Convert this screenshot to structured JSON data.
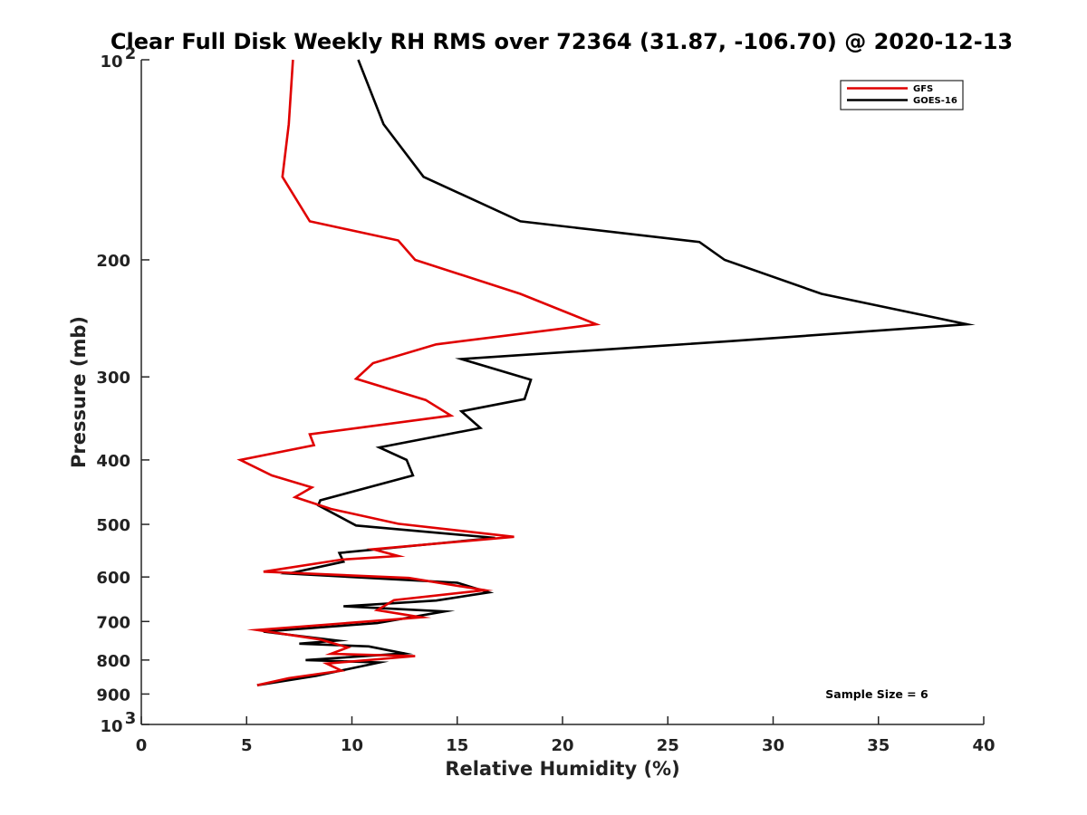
{
  "chart_data": {
    "type": "line",
    "title": "Clear Full Disk Weekly RH RMS over 72364 (31.87, -106.70) @ 2020-12-13",
    "xlabel": "Relative Humidity (%)",
    "ylabel": "Pressure (mb)",
    "xlim": [
      0,
      40
    ],
    "ylim": [
      100,
      1000
    ],
    "y_scale": "log",
    "y_reversed": true,
    "grid": false,
    "legend_position": "top-right",
    "x_ticks": [
      "0",
      "5",
      "10",
      "15",
      "20",
      "25",
      "30",
      "35",
      "40"
    ],
    "y_ticks": [
      {
        "value": 100,
        "base": "10",
        "exp": "2"
      },
      {
        "value": 200,
        "label": "200"
      },
      {
        "value": 300,
        "label": "300"
      },
      {
        "value": 400,
        "label": "400"
      },
      {
        "value": 500,
        "label": "500"
      },
      {
        "value": 600,
        "label": "600"
      },
      {
        "value": 700,
        "label": "700"
      },
      {
        "value": 800,
        "label": "800"
      },
      {
        "value": 900,
        "label": "900"
      },
      {
        "value": 1000,
        "base": "10",
        "exp": "3"
      }
    ],
    "annotation": "Sample Size = 6",
    "series": [
      {
        "name": "GFS",
        "color": "#e00000",
        "points": [
          [
            7.2,
            100
          ],
          [
            7.0,
            125
          ],
          [
            6.7,
            150
          ],
          [
            8.0,
            175
          ],
          [
            12.2,
            187
          ],
          [
            13.0,
            200
          ],
          [
            18.0,
            225
          ],
          [
            21.6,
            250
          ],
          [
            14.0,
            268
          ],
          [
            11.0,
            286
          ],
          [
            10.2,
            302
          ],
          [
            13.5,
            325
          ],
          [
            14.7,
            343
          ],
          [
            8.0,
            366
          ],
          [
            8.2,
            380
          ],
          [
            4.7,
            400
          ],
          [
            6.2,
            422
          ],
          [
            8.1,
            440
          ],
          [
            7.3,
            455
          ],
          [
            9.0,
            474
          ],
          [
            12.2,
            499
          ],
          [
            17.7,
            522
          ],
          [
            11.0,
            545
          ],
          [
            12.2,
            558
          ],
          [
            9.5,
            565
          ],
          [
            5.8,
            589
          ],
          [
            12.7,
            602
          ],
          [
            16.3,
            628
          ],
          [
            12.0,
            650
          ],
          [
            11.2,
            673
          ],
          [
            13.3,
            690
          ],
          [
            5.5,
            721
          ],
          [
            8.5,
            745
          ],
          [
            9.8,
            766
          ],
          [
            9.0,
            783
          ],
          [
            13.0,
            789
          ],
          [
            8.8,
            810
          ],
          [
            9.5,
            830
          ],
          [
            7.0,
            852
          ],
          [
            5.5,
            873
          ]
        ]
      },
      {
        "name": "GOES-16",
        "color": "#000000",
        "points": [
          [
            10.3,
            100
          ],
          [
            11.5,
            125
          ],
          [
            13.4,
            150
          ],
          [
            18.0,
            175
          ],
          [
            26.5,
            188
          ],
          [
            27.7,
            200
          ],
          [
            32.3,
            225
          ],
          [
            39.2,
            250
          ],
          [
            28.0,
            265
          ],
          [
            15.2,
            282
          ],
          [
            18.5,
            303
          ],
          [
            18.2,
            324
          ],
          [
            15.2,
            338
          ],
          [
            16.1,
            358
          ],
          [
            11.3,
            383
          ],
          [
            12.6,
            400
          ],
          [
            12.9,
            422
          ],
          [
            8.5,
            460
          ],
          [
            8.4,
            468
          ],
          [
            10.2,
            502
          ],
          [
            16.8,
            524
          ],
          [
            9.4,
            552
          ],
          [
            9.6,
            569
          ],
          [
            7.0,
            593
          ],
          [
            15.0,
            612
          ],
          [
            16.5,
            633
          ],
          [
            14.0,
            651
          ],
          [
            9.6,
            664
          ],
          [
            14.4,
            676
          ],
          [
            11.2,
            704
          ],
          [
            5.8,
            725
          ],
          [
            9.3,
            748
          ],
          [
            7.5,
            756
          ],
          [
            10.8,
            763
          ],
          [
            12.5,
            782
          ],
          [
            7.8,
            800
          ],
          [
            11.3,
            807
          ],
          [
            8.3,
            845
          ],
          [
            5.5,
            873
          ]
        ]
      }
    ]
  }
}
